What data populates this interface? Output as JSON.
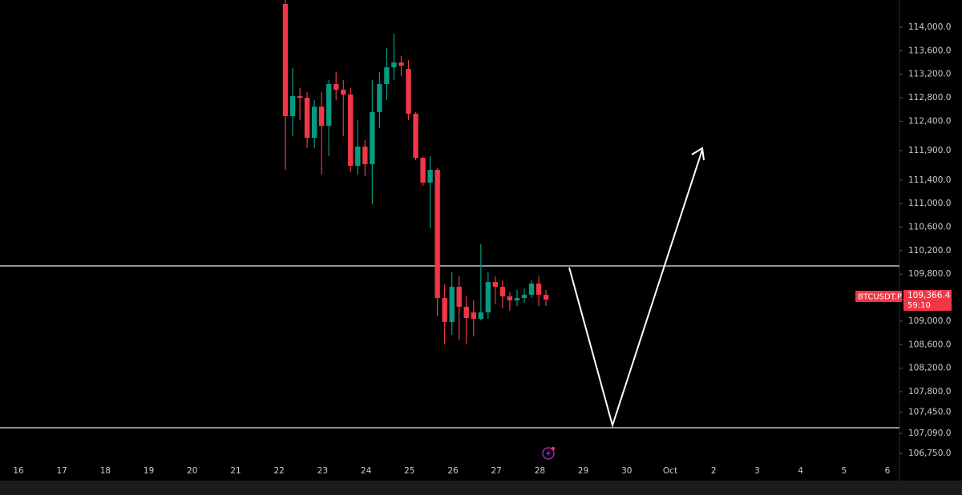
{
  "chart_data": {
    "type": "candlestick",
    "symbol": "BTCUSDT.P",
    "countdown": "59:10",
    "last_price": {
      "value": 109366.4,
      "label": "109,366.4"
    },
    "up_color": "#089981",
    "down_color": "#f23645",
    "ylim": [
      106287,
      114463
    ],
    "yticks": [
      {
        "value": 114000,
        "label": "114,000.0"
      },
      {
        "value": 113600,
        "label": "113,600.0"
      },
      {
        "value": 113200,
        "label": "113,200.0"
      },
      {
        "value": 112800,
        "label": "112,800.0"
      },
      {
        "value": 112400,
        "label": "112,400.0"
      },
      {
        "value": 111900,
        "label": "111,900.0"
      },
      {
        "value": 111400,
        "label": "111,400.0"
      },
      {
        "value": 111000,
        "label": "111,000.0"
      },
      {
        "value": 110600,
        "label": "110,600.0"
      },
      {
        "value": 110200,
        "label": "110,200.0"
      },
      {
        "value": 109800,
        "label": "109,800.0"
      },
      {
        "value": 109000,
        "label": "109,000.0"
      },
      {
        "value": 108600,
        "label": "108,600.0"
      },
      {
        "value": 108200,
        "label": "108,200.0"
      },
      {
        "value": 107800,
        "label": "107,800.0"
      },
      {
        "value": 107450,
        "label": "107,450.0"
      },
      {
        "value": 107090,
        "label": "107,090.0"
      },
      {
        "value": 106750,
        "label": "106,750.0"
      }
    ],
    "xtick_labels": [
      "16",
      "17",
      "18",
      "19",
      "20",
      "21",
      "22",
      "23",
      "24",
      "25",
      "26",
      "27",
      "28",
      "29",
      "30",
      "Oct",
      "2",
      "3",
      "4",
      "5",
      "6"
    ],
    "open": [
      114395,
      112487,
      112828,
      112800,
      112119,
      112650,
      112323,
      113032,
      112937,
      112855,
      111642,
      111969,
      111669,
      112555,
      113032,
      113318,
      113400,
      113291,
      112528,
      111778,
      111356,
      111574,
      109393,
      108985,
      109584,
      109243,
      109148,
      109039,
      109148,
      109666,
      109584,
      109421,
      109352,
      109393,
      109448,
      109639,
      109448
    ],
    "high": [
      114463,
      113305,
      112964,
      112896,
      112760,
      112896,
      113100,
      113237,
      113100,
      112964,
      112419,
      112078,
      113100,
      113237,
      113645,
      113891,
      113509,
      113441,
      112555,
      111805,
      111805,
      111601,
      109625,
      109830,
      109761,
      109421,
      109352,
      110307,
      109830,
      109761,
      109693,
      109489,
      109530,
      109557,
      109693,
      109761,
      109530
    ],
    "low": [
      111574,
      112146,
      112419,
      111942,
      111942,
      111492,
      111805,
      112760,
      112146,
      111533,
      111492,
      111465,
      110988,
      112283,
      112760,
      113100,
      113168,
      112419,
      111737,
      111301,
      110579,
      109080,
      108603,
      108767,
      108671,
      108603,
      108739,
      109012,
      109039,
      109284,
      109216,
      109175,
      109257,
      109312,
      109393,
      109257,
      109257
    ],
    "close": [
      112487,
      112828,
      112800,
      112119,
      112650,
      112323,
      113032,
      112937,
      112855,
      111642,
      111969,
      111669,
      112555,
      113032,
      113318,
      113400,
      113346,
      112528,
      111778,
      111356,
      111574,
      109393,
      108985,
      109584,
      109243,
      109053,
      109039,
      109148,
      109666,
      109584,
      109421,
      109352,
      109393,
      109448,
      109639,
      109448,
      109366.4
    ]
  }
}
